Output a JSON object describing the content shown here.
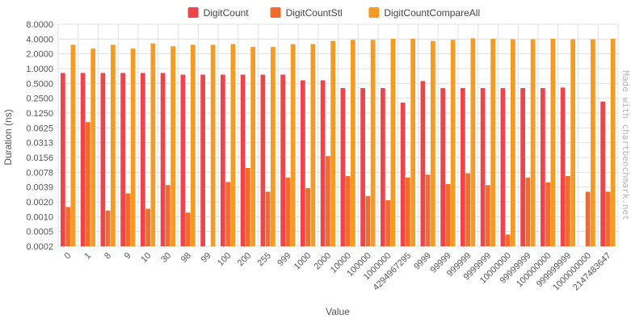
{
  "colors": {
    "DigitCount": "#f0444a",
    "DigitCountStl": "#f26b2a",
    "DigitCountCompareAll": "#f59a23"
  },
  "watermark": "Made with chartbenchmark.net",
  "chart_data": {
    "type": "bar",
    "xlabel": "Value",
    "ylabel": "Duration (ns)",
    "y_scale": "log2",
    "ylim": [
      0.0002,
      8.0
    ],
    "y_ticks": [
      "8.0000",
      "4.0000",
      "2.0000",
      "1.0000",
      "0.5000",
      "0.2500",
      "0.1250",
      "0.0625",
      "0.0313",
      "0.0156",
      "0.0078",
      "0.0039",
      "0.0020",
      "0.0010",
      "0.0005",
      "0.0002"
    ],
    "legend_position": "top-center",
    "grid": true,
    "categories": [
      "0",
      "1",
      "8",
      "9",
      "10",
      "30",
      "98",
      "99",
      "100",
      "200",
      "255",
      "999",
      "1000",
      "2000",
      "10000",
      "100000",
      "1000000",
      "4294967295",
      "9999",
      "99999",
      "999999",
      "9999999",
      "10000000",
      "99999999",
      "100000000",
      "999999999",
      "1000000000",
      "2147483647"
    ],
    "series": [
      {
        "name": "DigitCount",
        "values": [
          0.78,
          0.78,
          0.78,
          0.78,
          0.78,
          0.78,
          0.72,
          0.72,
          0.72,
          0.72,
          0.72,
          0.72,
          0.55,
          0.55,
          0.38,
          0.38,
          0.38,
          0.19,
          0.53,
          0.38,
          0.38,
          0.38,
          0.38,
          0.38,
          0.38,
          0.39,
          null,
          0.2
        ]
      },
      {
        "name": "DigitCountStl",
        "values": [
          0.0013,
          0.075,
          0.0011,
          0.0025,
          0.0012,
          0.0037,
          0.001,
          null,
          0.0043,
          0.0084,
          0.0027,
          0.0053,
          0.0032,
          0.0148,
          0.0057,
          0.0022,
          0.0018,
          0.0053,
          0.0061,
          0.0039,
          0.0065,
          0.0037,
          0.00035,
          0.0053,
          0.0042,
          0.0057,
          0.0027,
          0.0027
        ]
      },
      {
        "name": "DigitCountCompareAll",
        "values": [
          3.0,
          2.5,
          3.0,
          2.5,
          3.2,
          2.8,
          3.0,
          3.0,
          3.1,
          2.7,
          2.7,
          3.1,
          3.1,
          3.6,
          3.8,
          3.8,
          4.0,
          4.0,
          3.6,
          3.8,
          4.1,
          4.0,
          3.9,
          3.9,
          4.0,
          3.9,
          3.9,
          4.0
        ]
      }
    ]
  }
}
